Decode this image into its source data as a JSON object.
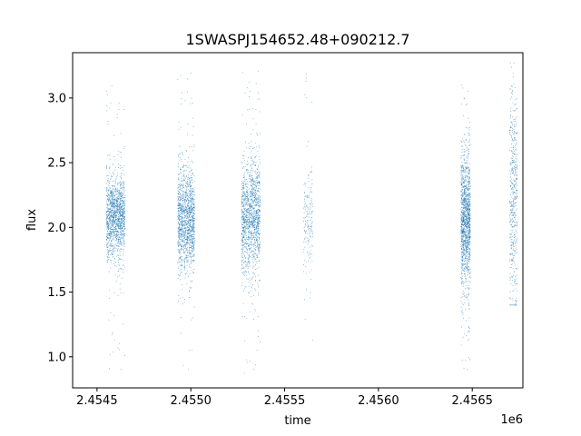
{
  "chart_data": {
    "type": "scatter",
    "title": "1SWASPJ154652.48+090212.7",
    "xlabel": "time",
    "ylabel": "flux",
    "x_offset_label": "1e6",
    "xlim": [
      2.45437,
      2.45677
    ],
    "ylim": [
      0.76,
      3.35
    ],
    "x_ticks": [
      2.4545,
      2.455,
      2.4555,
      2.456,
      2.4565
    ],
    "x_tick_labels": [
      "2.4545",
      "2.4550",
      "2.4555",
      "2.4560",
      "2.4565"
    ],
    "y_ticks": [
      1.0,
      1.5,
      2.0,
      2.5,
      3.0
    ],
    "y_tick_labels": [
      "1.0",
      "1.5",
      "2.0",
      "2.5",
      "3.0"
    ],
    "grid": false,
    "legend": "none",
    "marker_color": "#1f77b4",
    "clusters": [
      {
        "x_range": [
          2.45455,
          2.45465
        ],
        "y_center": 2.08,
        "y_spread": 0.16,
        "y_min": 0.87,
        "y_max": 3.12,
        "density": "high"
      },
      {
        "x_range": [
          2.45493,
          2.45502
        ],
        "y_center": 2.05,
        "y_spread": 0.2,
        "y_min": 0.86,
        "y_max": 3.22,
        "density": "high"
      },
      {
        "x_range": [
          2.45527,
          2.45537
        ],
        "y_center": 2.08,
        "y_spread": 0.22,
        "y_min": 0.87,
        "y_max": 3.24,
        "density": "high"
      },
      {
        "x_range": [
          2.4556,
          2.45565
        ],
        "y_center": 2.05,
        "y_spread": 0.2,
        "y_min": 1.05,
        "y_max": 3.27,
        "density": "low"
      },
      {
        "x_range": [
          2.45644,
          2.45649
        ],
        "y_center": 2.08,
        "y_spread": 0.25,
        "y_min": 0.9,
        "y_max": 3.12,
        "density": "high"
      },
      {
        "x_range": [
          2.4567,
          2.45674
        ],
        "y_center": 2.25,
        "y_spread": 0.45,
        "y_min": 1.4,
        "y_max": 3.27,
        "density": "medium"
      }
    ]
  }
}
